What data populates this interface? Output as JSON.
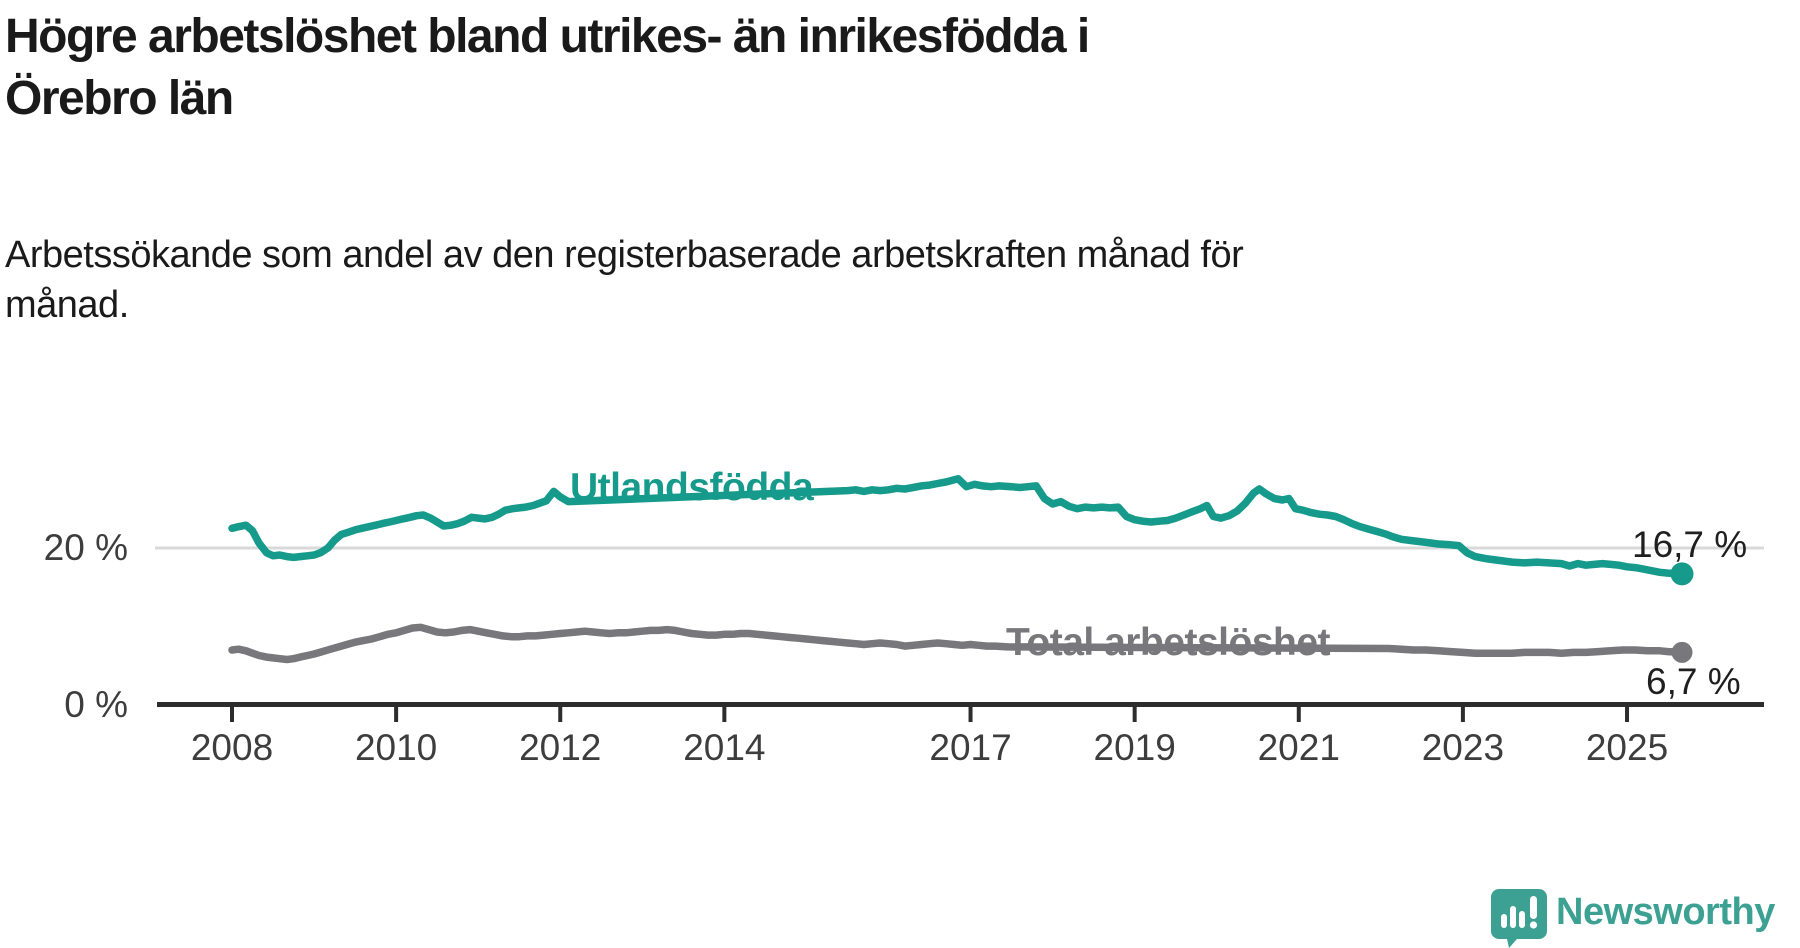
{
  "title_lines": [
    "Högre arbetslöshet bland utrikes- än inrikesfödda i",
    "Örebro län"
  ],
  "subtitle_lines": [
    "Arbetssökande som andel av den registerbaserade arbetskraften månad för",
    "månad."
  ],
  "branding": {
    "name": "Newsworthy",
    "logo_icon": "speech-bubble-bar-chart-icon",
    "color": "#3ca192"
  },
  "colors": {
    "utlandsfodda": "#159a8b",
    "total": "#77777c",
    "gridline": "#d9d9d9",
    "axis": "#2d2d2d",
    "text": "#1a1a1a"
  },
  "chart_data": {
    "type": "line",
    "title": "Högre arbetslöshet bland utrikes- än inrikesfödda i Örebro län",
    "subtitle": "Arbetssökande som andel av den registerbaserade arbetskraften månad för månad.",
    "unit": "%",
    "grid": "horizontal line at 20% only",
    "legend_position": "inline labels on lines",
    "x_range": [
      2008,
      2025.67
    ],
    "ylim": [
      0,
      30
    ],
    "x_ticks": [
      "2008",
      "2010",
      "2012",
      "2014",
      "2017",
      "2019",
      "2021",
      "2023",
      "2025"
    ],
    "x_tick_years": [
      2008,
      2010,
      2012,
      2014,
      2017,
      2019,
      2021,
      2023,
      2025
    ],
    "y_ticks": [
      {
        "value": 0,
        "label": "0 %"
      },
      {
        "value": 20,
        "label": "20 %"
      }
    ],
    "series": [
      {
        "name": "Utlandsfödda",
        "color": "#159a8b",
        "end_label": "16,7 %",
        "end_value": 16.7,
        "label_gap_years": [
          2012.15,
          2015.45
        ],
        "points": [
          [
            2008.0,
            22.5
          ],
          [
            2008.08,
            22.7
          ],
          [
            2008.17,
            22.9
          ],
          [
            2008.25,
            22.2
          ],
          [
            2008.33,
            20.6
          ],
          [
            2008.42,
            19.4
          ],
          [
            2008.5,
            19.0
          ],
          [
            2008.58,
            19.1
          ],
          [
            2008.67,
            18.9
          ],
          [
            2008.75,
            18.8
          ],
          [
            2008.83,
            18.9
          ],
          [
            2008.92,
            19.0
          ],
          [
            2009.0,
            19.1
          ],
          [
            2009.08,
            19.4
          ],
          [
            2009.17,
            20.0
          ],
          [
            2009.25,
            21.0
          ],
          [
            2009.33,
            21.7
          ],
          [
            2009.42,
            22.0
          ],
          [
            2009.5,
            22.3
          ],
          [
            2009.58,
            22.5
          ],
          [
            2009.67,
            22.7
          ],
          [
            2009.75,
            22.9
          ],
          [
            2009.83,
            23.1
          ],
          [
            2009.92,
            23.3
          ],
          [
            2010.0,
            23.5
          ],
          [
            2010.08,
            23.7
          ],
          [
            2010.17,
            23.9
          ],
          [
            2010.25,
            24.1
          ],
          [
            2010.33,
            24.2
          ],
          [
            2010.42,
            23.8
          ],
          [
            2010.5,
            23.3
          ],
          [
            2010.58,
            22.8
          ],
          [
            2010.67,
            22.9
          ],
          [
            2010.75,
            23.1
          ],
          [
            2010.83,
            23.4
          ],
          [
            2010.92,
            23.9
          ],
          [
            2011.0,
            23.8
          ],
          [
            2011.08,
            23.7
          ],
          [
            2011.17,
            23.9
          ],
          [
            2011.25,
            24.3
          ],
          [
            2011.33,
            24.8
          ],
          [
            2011.42,
            25.0
          ],
          [
            2011.5,
            25.1
          ],
          [
            2011.58,
            25.2
          ],
          [
            2011.67,
            25.4
          ],
          [
            2011.75,
            25.7
          ],
          [
            2011.83,
            26.0
          ],
          [
            2011.92,
            27.2
          ],
          [
            2012.0,
            26.5
          ],
          [
            2012.1,
            25.9
          ],
          [
            2015.5,
            27.3
          ],
          [
            2015.6,
            27.4
          ],
          [
            2015.7,
            27.2
          ],
          [
            2015.8,
            27.4
          ],
          [
            2015.9,
            27.3
          ],
          [
            2016.0,
            27.4
          ],
          [
            2016.1,
            27.6
          ],
          [
            2016.2,
            27.5
          ],
          [
            2016.3,
            27.7
          ],
          [
            2016.4,
            27.9
          ],
          [
            2016.5,
            28.0
          ],
          [
            2016.6,
            28.2
          ],
          [
            2016.7,
            28.4
          ],
          [
            2016.85,
            28.8
          ],
          [
            2016.95,
            27.8
          ],
          [
            2017.05,
            28.1
          ],
          [
            2017.15,
            27.9
          ],
          [
            2017.25,
            27.8
          ],
          [
            2017.35,
            27.9
          ],
          [
            2017.5,
            27.8
          ],
          [
            2017.6,
            27.7
          ],
          [
            2017.7,
            27.8
          ],
          [
            2017.8,
            27.9
          ],
          [
            2017.9,
            26.3
          ],
          [
            2018.0,
            25.6
          ],
          [
            2018.1,
            25.9
          ],
          [
            2018.2,
            25.3
          ],
          [
            2018.3,
            25.0
          ],
          [
            2018.4,
            25.2
          ],
          [
            2018.5,
            25.1
          ],
          [
            2018.6,
            25.2
          ],
          [
            2018.7,
            25.1
          ],
          [
            2018.8,
            25.2
          ],
          [
            2018.9,
            24.0
          ],
          [
            2019.0,
            23.6
          ],
          [
            2019.1,
            23.4
          ],
          [
            2019.2,
            23.3
          ],
          [
            2019.3,
            23.4
          ],
          [
            2019.4,
            23.5
          ],
          [
            2019.5,
            23.8
          ],
          [
            2019.6,
            24.2
          ],
          [
            2019.7,
            24.6
          ],
          [
            2019.8,
            25.0
          ],
          [
            2019.88,
            25.4
          ],
          [
            2019.96,
            24.0
          ],
          [
            2020.05,
            23.8
          ],
          [
            2020.15,
            24.1
          ],
          [
            2020.25,
            24.7
          ],
          [
            2020.35,
            25.7
          ],
          [
            2020.45,
            27.0
          ],
          [
            2020.52,
            27.5
          ],
          [
            2020.6,
            26.9
          ],
          [
            2020.7,
            26.3
          ],
          [
            2020.8,
            26.1
          ],
          [
            2020.88,
            26.3
          ],
          [
            2020.96,
            25.0
          ],
          [
            2021.05,
            24.8
          ],
          [
            2021.15,
            24.5
          ],
          [
            2021.25,
            24.3
          ],
          [
            2021.35,
            24.2
          ],
          [
            2021.45,
            24.0
          ],
          [
            2021.55,
            23.6
          ],
          [
            2021.65,
            23.1
          ],
          [
            2021.75,
            22.7
          ],
          [
            2021.85,
            22.4
          ],
          [
            2021.95,
            22.1
          ],
          [
            2022.05,
            21.8
          ],
          [
            2022.15,
            21.4
          ],
          [
            2022.25,
            21.1
          ],
          [
            2022.4,
            20.9
          ],
          [
            2022.55,
            20.7
          ],
          [
            2022.7,
            20.5
          ],
          [
            2022.85,
            20.4
          ],
          [
            2022.95,
            20.3
          ],
          [
            2023.05,
            19.4
          ],
          [
            2023.15,
            18.9
          ],
          [
            2023.3,
            18.6
          ],
          [
            2023.45,
            18.4
          ],
          [
            2023.6,
            18.2
          ],
          [
            2023.75,
            18.1
          ],
          [
            2023.9,
            18.2
          ],
          [
            2024.05,
            18.1
          ],
          [
            2024.2,
            18.0
          ],
          [
            2024.3,
            17.7
          ],
          [
            2024.4,
            18.0
          ],
          [
            2024.5,
            17.8
          ],
          [
            2024.6,
            17.9
          ],
          [
            2024.7,
            18.0
          ],
          [
            2024.8,
            17.9
          ],
          [
            2024.9,
            17.8
          ],
          [
            2025.0,
            17.6
          ],
          [
            2025.1,
            17.5
          ],
          [
            2025.2,
            17.3
          ],
          [
            2025.3,
            17.1
          ],
          [
            2025.4,
            16.9
          ],
          [
            2025.5,
            16.8
          ],
          [
            2025.67,
            16.7
          ]
        ]
      },
      {
        "name": "Total arbetslöshet",
        "color": "#77777c",
        "end_label": "6,7 %",
        "end_value": 6.7,
        "label_gap_years": [
          2017.5,
          2022.05
        ],
        "points": [
          [
            2008.0,
            7.0
          ],
          [
            2008.08,
            7.1
          ],
          [
            2008.17,
            6.9
          ],
          [
            2008.25,
            6.6
          ],
          [
            2008.33,
            6.3
          ],
          [
            2008.42,
            6.1
          ],
          [
            2008.5,
            6.0
          ],
          [
            2008.58,
            5.9
          ],
          [
            2008.67,
            5.8
          ],
          [
            2008.75,
            5.9
          ],
          [
            2008.83,
            6.1
          ],
          [
            2008.92,
            6.3
          ],
          [
            2009.0,
            6.5
          ],
          [
            2009.1,
            6.8
          ],
          [
            2009.2,
            7.1
          ],
          [
            2009.3,
            7.4
          ],
          [
            2009.4,
            7.7
          ],
          [
            2009.5,
            8.0
          ],
          [
            2009.6,
            8.2
          ],
          [
            2009.7,
            8.4
          ],
          [
            2009.8,
            8.7
          ],
          [
            2009.9,
            9.0
          ],
          [
            2010.0,
            9.2
          ],
          [
            2010.1,
            9.5
          ],
          [
            2010.2,
            9.8
          ],
          [
            2010.3,
            9.9
          ],
          [
            2010.4,
            9.6
          ],
          [
            2010.5,
            9.3
          ],
          [
            2010.6,
            9.2
          ],
          [
            2010.7,
            9.3
          ],
          [
            2010.8,
            9.5
          ],
          [
            2010.9,
            9.6
          ],
          [
            2011.0,
            9.4
          ],
          [
            2011.1,
            9.2
          ],
          [
            2011.2,
            9.0
          ],
          [
            2011.3,
            8.8
          ],
          [
            2011.4,
            8.7
          ],
          [
            2011.5,
            8.7
          ],
          [
            2011.6,
            8.8
          ],
          [
            2011.7,
            8.8
          ],
          [
            2011.8,
            8.9
          ],
          [
            2011.9,
            9.0
          ],
          [
            2012.0,
            9.1
          ],
          [
            2012.1,
            9.2
          ],
          [
            2012.2,
            9.3
          ],
          [
            2012.3,
            9.4
          ],
          [
            2012.4,
            9.3
          ],
          [
            2012.5,
            9.2
          ],
          [
            2012.6,
            9.1
          ],
          [
            2012.7,
            9.2
          ],
          [
            2012.8,
            9.2
          ],
          [
            2012.9,
            9.3
          ],
          [
            2013.0,
            9.4
          ],
          [
            2013.1,
            9.5
          ],
          [
            2013.2,
            9.5
          ],
          [
            2013.3,
            9.6
          ],
          [
            2013.4,
            9.5
          ],
          [
            2013.5,
            9.3
          ],
          [
            2013.6,
            9.1
          ],
          [
            2013.7,
            9.0
          ],
          [
            2013.8,
            8.9
          ],
          [
            2013.9,
            8.9
          ],
          [
            2014.0,
            9.0
          ],
          [
            2014.1,
            9.0
          ],
          [
            2014.2,
            9.1
          ],
          [
            2014.3,
            9.1
          ],
          [
            2014.4,
            9.0
          ],
          [
            2014.5,
            8.9
          ],
          [
            2014.6,
            8.8
          ],
          [
            2014.7,
            8.7
          ],
          [
            2014.8,
            8.6
          ],
          [
            2014.9,
            8.5
          ],
          [
            2015.0,
            8.4
          ],
          [
            2015.1,
            8.3
          ],
          [
            2015.2,
            8.2
          ],
          [
            2015.3,
            8.1
          ],
          [
            2015.4,
            8.0
          ],
          [
            2015.5,
            7.9
          ],
          [
            2015.6,
            7.8
          ],
          [
            2015.7,
            7.7
          ],
          [
            2015.8,
            7.8
          ],
          [
            2015.9,
            7.9
          ],
          [
            2016.0,
            7.8
          ],
          [
            2016.1,
            7.7
          ],
          [
            2016.2,
            7.5
          ],
          [
            2016.3,
            7.6
          ],
          [
            2016.4,
            7.7
          ],
          [
            2016.5,
            7.8
          ],
          [
            2016.6,
            7.9
          ],
          [
            2016.7,
            7.8
          ],
          [
            2016.8,
            7.7
          ],
          [
            2016.9,
            7.6
          ],
          [
            2017.0,
            7.7
          ],
          [
            2017.1,
            7.6
          ],
          [
            2017.2,
            7.5
          ],
          [
            2017.3,
            7.5
          ],
          [
            2017.45,
            7.4
          ],
          [
            2022.1,
            7.2
          ],
          [
            2022.25,
            7.1
          ],
          [
            2022.4,
            7.0
          ],
          [
            2022.55,
            7.0
          ],
          [
            2022.7,
            6.9
          ],
          [
            2022.85,
            6.8
          ],
          [
            2023.0,
            6.7
          ],
          [
            2023.15,
            6.6
          ],
          [
            2023.3,
            6.6
          ],
          [
            2023.45,
            6.6
          ],
          [
            2023.6,
            6.6
          ],
          [
            2023.75,
            6.7
          ],
          [
            2023.9,
            6.7
          ],
          [
            2024.05,
            6.7
          ],
          [
            2024.2,
            6.6
          ],
          [
            2024.35,
            6.7
          ],
          [
            2024.5,
            6.7
          ],
          [
            2024.65,
            6.8
          ],
          [
            2024.8,
            6.9
          ],
          [
            2024.95,
            7.0
          ],
          [
            2025.1,
            7.0
          ],
          [
            2025.25,
            6.9
          ],
          [
            2025.4,
            6.9
          ],
          [
            2025.5,
            6.8
          ],
          [
            2025.67,
            6.7
          ]
        ]
      }
    ]
  }
}
